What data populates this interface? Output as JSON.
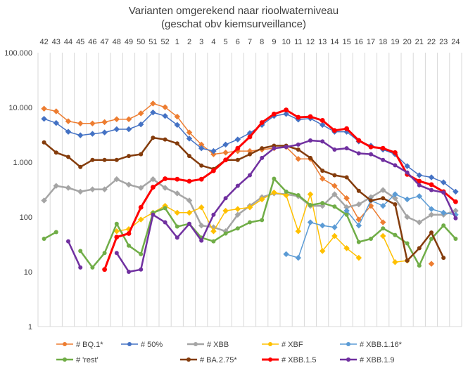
{
  "chart_data": {
    "type": "line",
    "title": "Varianten omgerekend naar rioolwaterniveau",
    "subtitle": "(geschat obv kiemsurveillance)",
    "yscale": "log",
    "ylim": [
      1,
      100000
    ],
    "yticks": [
      1,
      10,
      100,
      1000,
      10000,
      100000
    ],
    "ytick_labels": [
      "1",
      "10",
      "100",
      "1.000",
      "10.000",
      "100.000"
    ],
    "x_position": "top",
    "grid": "vertical",
    "legend_position": "bottom",
    "categories": [
      "42",
      "43",
      "44",
      "45",
      "46",
      "47",
      "48",
      "49",
      "50",
      "51",
      "52",
      "1",
      "2",
      "3",
      "4",
      "5",
      "6",
      "7",
      "8",
      "9",
      "10",
      "11",
      "12",
      "13",
      "14",
      "15",
      "16",
      "17",
      "18",
      "19",
      "20",
      "21",
      "22",
      "23",
      "24"
    ],
    "series": [
      {
        "name": "# BQ.1*",
        "color": "#ED7D31",
        "width": 1.5,
        "values": [
          9500,
          8500,
          5600,
          5100,
          5100,
          5400,
          6100,
          6100,
          7800,
          11800,
          10100,
          6800,
          3500,
          2100,
          1400,
          1500,
          1600,
          1600,
          1700,
          1800,
          1900,
          1150,
          1150,
          500,
          370,
          220,
          90,
          160,
          80,
          null,
          null,
          null,
          14,
          null,
          null
        ]
      },
      {
        "name": "# 50%",
        "color": "#4472C4",
        "width": 1.5,
        "values": [
          6200,
          5200,
          3600,
          3100,
          3300,
          3500,
          4000,
          4000,
          4900,
          8100,
          7000,
          4800,
          2700,
          1800,
          1600,
          2100,
          2600,
          3400,
          4800,
          7000,
          7600,
          6000,
          6300,
          4800,
          3600,
          3600,
          2400,
          2000,
          1700,
          1400,
          850,
          580,
          530,
          430,
          290
        ]
      },
      {
        "name": "# XBB",
        "color": "#A5A5A5",
        "width": 2.5,
        "values": [
          200,
          370,
          340,
          290,
          320,
          320,
          490,
          390,
          340,
          490,
          340,
          270,
          200,
          70,
          65,
          55,
          110,
          160,
          230,
          270,
          260,
          240,
          160,
          160,
          260,
          150,
          170,
          230,
          310,
          220,
          100,
          80,
          110,
          110,
          130
        ]
      },
      {
        "name": "# XBF",
        "color": "#FFC000",
        "width": 1.5,
        "values": [
          null,
          null,
          null,
          null,
          null,
          null,
          55,
          60,
          90,
          120,
          160,
          120,
          120,
          150,
          55,
          130,
          140,
          150,
          210,
          280,
          250,
          55,
          260,
          24,
          45,
          27,
          18,
          null,
          45,
          15,
          16,
          null,
          null,
          null,
          null
        ]
      },
      {
        "name": "# XBB.1.16*",
        "color": "#5B9BD5",
        "width": 1.5,
        "values": [
          null,
          null,
          null,
          null,
          null,
          null,
          null,
          null,
          null,
          null,
          null,
          null,
          null,
          null,
          null,
          null,
          null,
          null,
          null,
          null,
          21,
          18,
          80,
          70,
          65,
          130,
          70,
          200,
          160,
          260,
          210,
          240,
          140,
          120,
          110
        ]
      },
      {
        "name": "# 'rest'",
        "color": "#70AD47",
        "width": 2.5,
        "values": [
          40,
          53,
          null,
          24,
          12,
          22,
          75,
          30,
          21,
          120,
          145,
          67,
          75,
          42,
          36,
          50,
          62,
          80,
          88,
          500,
          290,
          250,
          165,
          180,
          155,
          110,
          35,
          40,
          62,
          47,
          33,
          13,
          40,
          70,
          40
        ]
      },
      {
        "name": "# BA.2.75*",
        "color": "#843C0C",
        "width": 2.5,
        "values": [
          2300,
          1500,
          1250,
          820,
          1100,
          1100,
          1100,
          1300,
          1400,
          2800,
          2600,
          2200,
          1300,
          870,
          750,
          1100,
          1100,
          1400,
          1800,
          2000,
          2000,
          1700,
          1200,
          700,
          580,
          530,
          300,
          200,
          220,
          170,
          16,
          27,
          52,
          18,
          null
        ]
      },
      {
        "name": "# XBB.1.5",
        "color": "#FF0000",
        "width": 3,
        "values": [
          null,
          null,
          null,
          null,
          null,
          11,
          43,
          50,
          150,
          350,
          500,
          490,
          450,
          490,
          700,
          1100,
          1800,
          2900,
          5300,
          7600,
          9000,
          6600,
          6800,
          5800,
          3800,
          4100,
          2500,
          1900,
          1800,
          1500,
          600,
          450,
          390,
          290,
          190
        ]
      },
      {
        "name": "# XBB.1.9",
        "color": "#7030A0",
        "width": 2.5,
        "values": [
          null,
          null,
          36,
          12,
          null,
          null,
          22,
          10,
          11,
          110,
          80,
          42,
          75,
          37,
          110,
          220,
          370,
          580,
          1200,
          1800,
          1900,
          2100,
          2500,
          2400,
          1700,
          1800,
          1450,
          1400,
          1100,
          880,
          650,
          380,
          310,
          280,
          95
        ]
      }
    ]
  }
}
